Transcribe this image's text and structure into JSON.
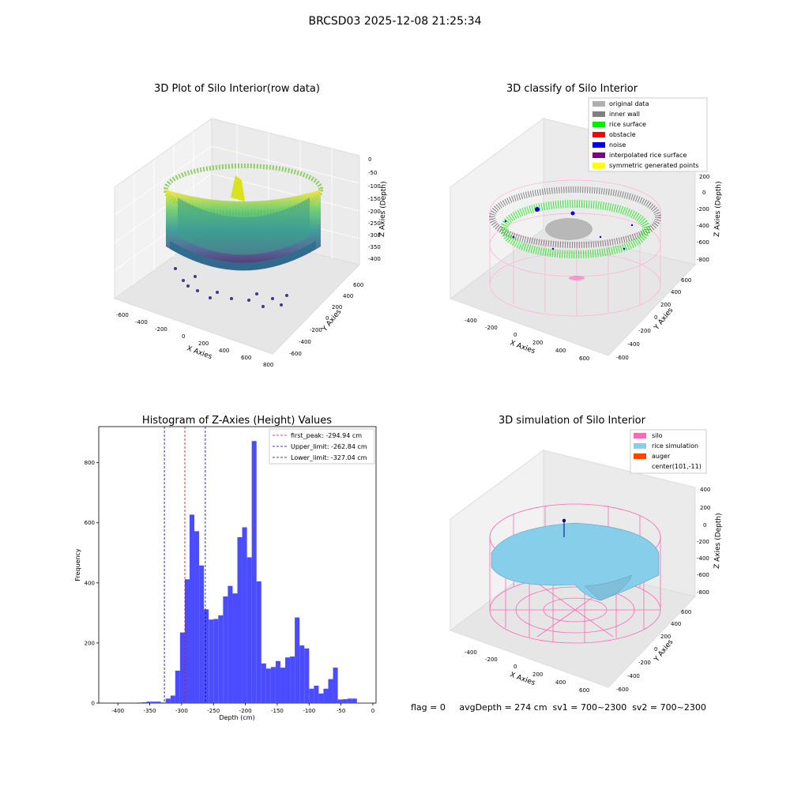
{
  "suptitle": "BRCSD03 2025-12-08 21:25:34",
  "footer": "flag = 0     avgDepth = 274 cm  sv1 = 700~2300  sv2 = 700~2300",
  "colors": {
    "original": "#b0b0b0",
    "inner_wall": "#808080",
    "rice_surface": "#00ee00",
    "obstacle": "#ff0000",
    "noise": "#0000e0",
    "interpolated": "#800080",
    "symmetric": "#ffff00",
    "silo": "#ff69b4",
    "rice_sim": "#87ceeb",
    "auger": "#ff4500",
    "hist_bar": "#4b4bff",
    "peak_line": "#ff0000",
    "limit_line": "#00008b"
  },
  "chart_data": [
    {
      "type": "scatter",
      "title": "3D Plot of Silo Interior(row data)",
      "xlabel": "X Axies",
      "ylabel": "Y Axies",
      "zlabel": "Z Axies (Depth)",
      "x_ticks": [
        "-600",
        "-400",
        "-200",
        "0",
        "200",
        "400",
        "600",
        "800"
      ],
      "y_ticks": [
        "-600",
        "-400",
        "-200",
        "0",
        "200",
        "400",
        "600"
      ],
      "z_ticks": [
        "0",
        "-50",
        "-100",
        "-150",
        "-200",
        "-250",
        "-300",
        "-350",
        "-400"
      ],
      "colormap": "viridis"
    },
    {
      "type": "scatter",
      "title": "3D classify of Silo Interior",
      "xlabel": "X Axies",
      "ylabel": "Y Axies",
      "zlabel": "Z Axies (Depth)",
      "x_ticks": [
        "-400",
        "-200",
        "0",
        "200",
        "400",
        "600"
      ],
      "y_ticks": [
        "-600",
        "-400",
        "-200",
        "0",
        "200",
        "400",
        "600"
      ],
      "z_ticks": [
        "200",
        "0",
        "-200",
        "-400",
        "-600",
        "-800"
      ],
      "legend": [
        "original data",
        "inner wall",
        "rice surface",
        "obstacle",
        "noise",
        "interpolated rice surface",
        "symmetric generated points"
      ],
      "legend_placement": "top-right"
    },
    {
      "type": "bar",
      "title": "Histogram of Z-Axies (Height) Values",
      "xlabel": "Depth (cm)",
      "ylabel": "Frequency",
      "xlim": [
        -430,
        5
      ],
      "ylim": [
        0,
        920
      ],
      "x_ticks": [
        -400,
        -350,
        -300,
        -250,
        -200,
        -150,
        -100,
        -50,
        0
      ],
      "y_ticks": [
        0,
        200,
        400,
        600,
        800
      ],
      "bin_start": -370,
      "bin_width": 7.5,
      "values": [
        2,
        3,
        5,
        5,
        5,
        2,
        15,
        25,
        108,
        235,
        412,
        627,
        572,
        458,
        312,
        278,
        280,
        292,
        355,
        390,
        365,
        552,
        585,
        485,
        872,
        405,
        132,
        115,
        120,
        140,
        118,
        152,
        155,
        285,
        192,
        182,
        48,
        58,
        32,
        48,
        80,
        118,
        12,
        13,
        15,
        15
      ],
      "vlines": [
        {
          "label": "first_peak: -294.94 cm",
          "x": -294.94,
          "color": "#ff0000"
        },
        {
          "label": "Upper_limit: -262.84 cm",
          "x": -262.84,
          "color": "#00008b"
        },
        {
          "label": "Lower_limit: -327.04 cm",
          "x": -327.04,
          "color": "#00008b"
        }
      ],
      "legend_placement": "top-right"
    },
    {
      "type": "area",
      "title": "3D simulation of Silo Interior",
      "xlabel": "X Axies",
      "ylabel": "Y Axies",
      "zlabel": "Z Axies (Depth)",
      "x_ticks": [
        "-400",
        "-200",
        "0",
        "200",
        "400",
        "600"
      ],
      "y_ticks": [
        "-600",
        "-400",
        "-200",
        "0",
        "200",
        "400",
        "600"
      ],
      "z_ticks": [
        "400",
        "200",
        "0",
        "-200",
        "-400",
        "-600",
        "-800"
      ],
      "legend": [
        "silo",
        "rice simulation",
        "auger",
        "center(101,-11)"
      ],
      "legend_placement": "top-right"
    }
  ]
}
